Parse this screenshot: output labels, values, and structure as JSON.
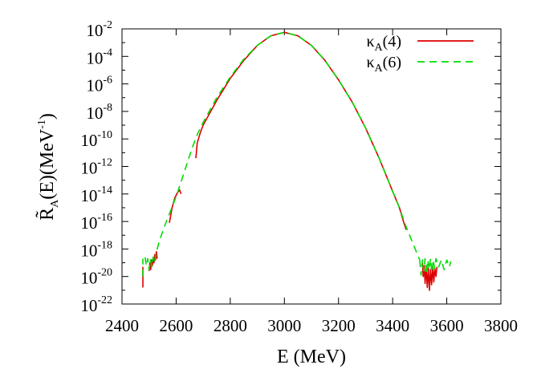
{
  "chart_data": {
    "type": "line",
    "xlabel": "E (MeV)",
    "ylabel": "R̃A(E)(MeV-1)",
    "ylabel_parts": {
      "main": "R̃",
      "sub": "A",
      "rest": "(E)(MeV",
      "sup": "-1",
      "close": ")"
    },
    "xlim": [
      2400,
      3800
    ],
    "ylim_log10": [
      -22,
      -2
    ],
    "y_scale": "log",
    "x_ticks": [
      "2400",
      "2600",
      "2800",
      "3000",
      "3200",
      "3400",
      "3600",
      "3800"
    ],
    "y_ticks": [
      {
        "base": "10",
        "exp": "-2"
      },
      {
        "base": "10",
        "exp": "-4"
      },
      {
        "base": "10",
        "exp": "-6"
      },
      {
        "base": "10",
        "exp": "-8"
      },
      {
        "base": "10",
        "exp": "-10"
      },
      {
        "base": "10",
        "exp": "-12"
      },
      {
        "base": "10",
        "exp": "-14"
      },
      {
        "base": "10",
        "exp": "-16"
      },
      {
        "base": "10",
        "exp": "-18"
      },
      {
        "base": "10",
        "exp": "-20"
      },
      {
        "base": "10",
        "exp": "-22"
      }
    ],
    "legend_position": "top-right",
    "grid": false,
    "series": [
      {
        "name": "κA(4)",
        "name_parts": {
          "main": "κ",
          "sub": "A",
          "rest": "(4)"
        },
        "color": "#dd0000",
        "dash": "solid",
        "segments": [
          [
            [
              2477,
              -20.8
            ],
            [
              2477,
              -19.3
            ]
          ],
          [
            [
              2500,
              -19.6
            ],
            [
              2503,
              -19.0
            ],
            [
              2506,
              -19.5
            ],
            [
              2509,
              -18.8
            ],
            [
              2512,
              -19.2
            ],
            [
              2515,
              -18.6
            ],
            [
              2518,
              -19.0
            ],
            [
              2521,
              -18.4
            ],
            [
              2524,
              -18.8
            ],
            [
              2527,
              -18.2
            ],
            [
              2530,
              -18.7
            ]
          ],
          [
            [
              2575,
              -16.1
            ],
            [
              2585,
              -15.0
            ],
            [
              2595,
              -14.3
            ],
            [
              2605,
              -13.9
            ],
            [
              2613,
              -13.7
            ],
            [
              2618,
              -14.0
            ]
          ],
          [
            [
              2673,
              -11.4
            ],
            [
              2678,
              -10.3
            ],
            [
              2690,
              -9.5
            ],
            [
              2700,
              -9.0
            ],
            [
              2750,
              -7.2
            ],
            [
              2800,
              -5.6
            ],
            [
              2850,
              -4.3
            ],
            [
              2900,
              -3.2
            ],
            [
              2950,
              -2.5
            ],
            [
              3000,
              -2.25
            ],
            [
              3050,
              -2.5
            ],
            [
              3100,
              -3.2
            ],
            [
              3150,
              -4.3
            ],
            [
              3200,
              -5.7
            ],
            [
              3250,
              -7.3
            ],
            [
              3300,
              -9.2
            ],
            [
              3350,
              -11.4
            ],
            [
              3400,
              -13.8
            ],
            [
              3425,
              -15.0
            ],
            [
              3440,
              -16.0
            ],
            [
              3450,
              -16.6
            ]
          ],
          [
            [
              3510,
              -19.0
            ],
            [
              3513,
              -20.0
            ],
            [
              3516,
              -19.2
            ],
            [
              3520,
              -20.5
            ],
            [
              3524,
              -19.3
            ],
            [
              3528,
              -20.8
            ],
            [
              3532,
              -19.4
            ],
            [
              3536,
              -21.0
            ],
            [
              3540,
              -19.5
            ],
            [
              3544,
              -20.6
            ],
            [
              3548,
              -19.3
            ],
            [
              3552,
              -20.4
            ],
            [
              3556,
              -19.4
            ],
            [
              3560,
              -20.0
            ],
            [
              3564,
              -19.3
            ]
          ]
        ]
      },
      {
        "name": "κA(6)",
        "name_parts": {
          "main": "κ",
          "sub": "A",
          "rest": "(6)"
        },
        "color": "#00dd00",
        "dash": "dashed",
        "segments": [
          [
            [
              2477,
              -20.0
            ],
            [
              2477,
              -18.7
            ]
          ],
          [
            [
              2485,
              -18.6
            ],
            [
              2490,
              -19.2
            ],
            [
              2495,
              -18.7
            ],
            [
              2500,
              -19.5
            ],
            [
              2505,
              -18.8
            ],
            [
              2510,
              -19.3
            ],
            [
              2515,
              -18.6
            ],
            [
              2520,
              -19.0
            ],
            [
              2525,
              -18.4
            ],
            [
              2530,
              -18.0
            ],
            [
              2540,
              -17.3
            ],
            [
              2560,
              -16.2
            ],
            [
              2580,
              -15.2
            ],
            [
              2600,
              -14.2
            ],
            [
              2620,
              -13.0
            ],
            [
              2640,
              -11.8
            ],
            [
              2660,
              -10.6
            ],
            [
              2680,
              -9.6
            ],
            [
              2700,
              -8.8
            ],
            [
              2750,
              -7.0
            ],
            [
              2800,
              -5.5
            ],
            [
              2850,
              -4.2
            ],
            [
              2900,
              -3.2
            ],
            [
              2950,
              -2.5
            ],
            [
              3000,
              -2.25
            ],
            [
              3050,
              -2.5
            ],
            [
              3100,
              -3.2
            ],
            [
              3150,
              -4.3
            ],
            [
              3200,
              -5.7
            ],
            [
              3250,
              -7.3
            ],
            [
              3300,
              -9.2
            ],
            [
              3350,
              -11.4
            ],
            [
              3400,
              -13.8
            ],
            [
              3425,
              -15.0
            ],
            [
              3450,
              -16.4
            ],
            [
              3475,
              -17.6
            ],
            [
              3500,
              -18.8
            ]
          ],
          [
            [
              3500,
              -18.8
            ],
            [
              3505,
              -19.9
            ],
            [
              3510,
              -18.8
            ],
            [
              3515,
              -19.6
            ],
            [
              3520,
              -18.7
            ],
            [
              3525,
              -19.8
            ],
            [
              3530,
              -18.8
            ],
            [
              3535,
              -19.5
            ],
            [
              3540,
              -18.7
            ],
            [
              3545,
              -19.7
            ],
            [
              3550,
              -18.8
            ],
            [
              3555,
              -19.4
            ],
            [
              3560,
              -18.7
            ],
            [
              3570,
              -19.3
            ],
            [
              3580,
              -18.8
            ],
            [
              3590,
              -19.5
            ],
            [
              3600,
              -18.8
            ],
            [
              3610,
              -19.3
            ],
            [
              3615,
              -18.9
            ]
          ]
        ]
      }
    ]
  }
}
